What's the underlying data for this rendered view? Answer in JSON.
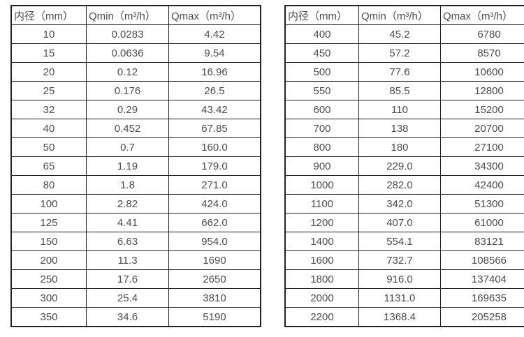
{
  "colors": {
    "border": "#222222",
    "text": "#4d4d4d",
    "background": "#ffffff"
  },
  "tables": [
    {
      "name": "flow-spec-small-diameters",
      "headers": [
        "内径（mm）",
        "Qmin（m³/h）",
        "Qmax（m³/h）"
      ],
      "rows": [
        [
          "10",
          "0.0283",
          "4.42"
        ],
        [
          "15",
          "0.0636",
          "9.54"
        ],
        [
          "20",
          "0.12",
          "16.96"
        ],
        [
          "25",
          "0.176",
          "26.5"
        ],
        [
          "32",
          "0.29",
          "43.42"
        ],
        [
          "40",
          "0.452",
          "67.85"
        ],
        [
          "50",
          "0.7",
          "160.0"
        ],
        [
          "65",
          "1.19",
          "179.0"
        ],
        [
          "80",
          "1.8",
          "271.0"
        ],
        [
          "100",
          "2.82",
          "424.0"
        ],
        [
          "125",
          "4.41",
          "662.0"
        ],
        [
          "150",
          "6.63",
          "954.0"
        ],
        [
          "200",
          "11.3",
          "1690"
        ],
        [
          "250",
          "17.6",
          "2650"
        ],
        [
          "300",
          "25.4",
          "3810"
        ],
        [
          "350",
          "34.6",
          "5190"
        ]
      ]
    },
    {
      "name": "flow-spec-large-diameters",
      "headers": [
        "内径（mm）",
        "Qmin（m³/h）",
        "Qmax（m³/h）"
      ],
      "rows": [
        [
          "400",
          "45.2",
          "6780"
        ],
        [
          "450",
          "57.2",
          "8570"
        ],
        [
          "500",
          "77.6",
          "10600"
        ],
        [
          "550",
          "85.5",
          "12800"
        ],
        [
          "600",
          "110",
          "15200"
        ],
        [
          "700",
          "138",
          "20700"
        ],
        [
          "800",
          "180",
          "27100"
        ],
        [
          "900",
          "229.0",
          "34300"
        ],
        [
          "1000",
          "282.0",
          "42400"
        ],
        [
          "1100",
          "342.0",
          "51300"
        ],
        [
          "1200",
          "407.0",
          "61000"
        ],
        [
          "1400",
          "554.1",
          "83121"
        ],
        [
          "1600",
          "732.7",
          "108566"
        ],
        [
          "1800",
          "916.0",
          "137404"
        ],
        [
          "2000",
          "1131.0",
          "169635"
        ],
        [
          "2200",
          "1368.4",
          "205258"
        ]
      ]
    }
  ]
}
